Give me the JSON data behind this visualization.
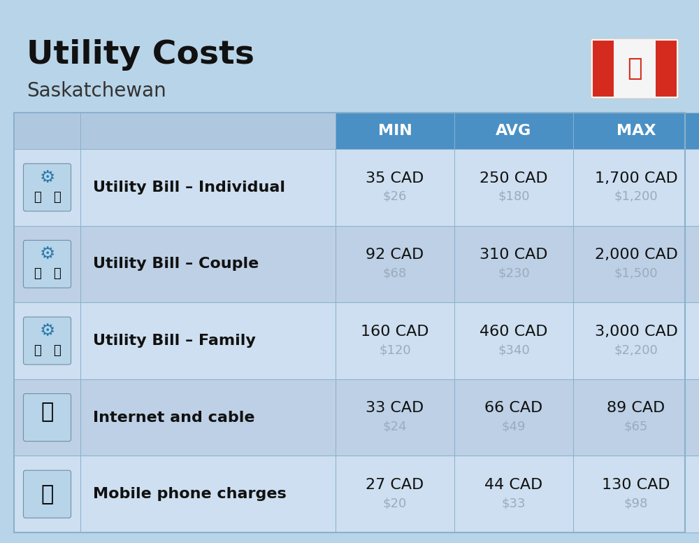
{
  "title": "Utility Costs",
  "subtitle": "Saskatchewan",
  "background_color": "#b8d4e8",
  "header_color": "#4a90c4",
  "header_text_color": "#ffffff",
  "row_color_even": "#cddff0",
  "row_color_odd": "#bdd0e5",
  "cell_border_color": "#8ab0cc",
  "col_header_labels": [
    "MIN",
    "AVG",
    "MAX"
  ],
  "rows": [
    {
      "label": "Utility Bill – Individual",
      "min_cad": "35 CAD",
      "min_usd": "$26",
      "avg_cad": "250 CAD",
      "avg_usd": "$180",
      "max_cad": "1,700 CAD",
      "max_usd": "$1,200"
    },
    {
      "label": "Utility Bill – Couple",
      "min_cad": "92 CAD",
      "min_usd": "$68",
      "avg_cad": "310 CAD",
      "avg_usd": "$230",
      "max_cad": "2,000 CAD",
      "max_usd": "$1,500"
    },
    {
      "label": "Utility Bill – Family",
      "min_cad": "160 CAD",
      "min_usd": "$120",
      "avg_cad": "460 CAD",
      "avg_usd": "$340",
      "max_cad": "3,000 CAD",
      "max_usd": "$2,200"
    },
    {
      "label": "Internet and cable",
      "min_cad": "33 CAD",
      "min_usd": "$24",
      "avg_cad": "66 CAD",
      "avg_usd": "$49",
      "max_cad": "89 CAD",
      "max_usd": "$65"
    },
    {
      "label": "Mobile phone charges",
      "min_cad": "27 CAD",
      "min_usd": "$20",
      "avg_cad": "44 CAD",
      "avg_usd": "$33",
      "max_cad": "130 CAD",
      "max_usd": "$98"
    }
  ],
  "title_fontsize": 34,
  "subtitle_fontsize": 20,
  "header_fontsize": 16,
  "label_fontsize": 16,
  "value_fontsize": 16,
  "usd_fontsize": 13,
  "usd_color": "#9aabbc",
  "label_color": "#111111",
  "value_color": "#111111",
  "flag_red": "#d52b1e",
  "flag_white": "#f5f5f5"
}
